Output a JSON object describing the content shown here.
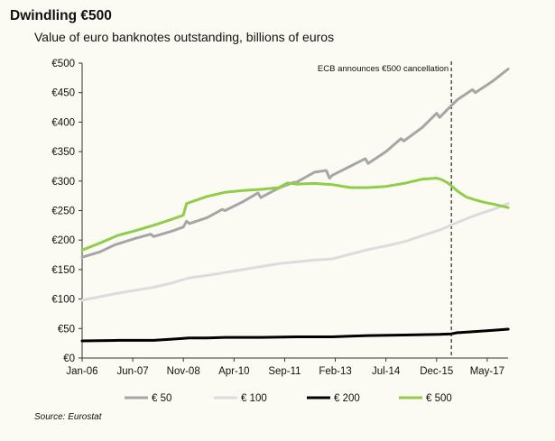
{
  "title": "Dwindling €500",
  "subtitle": "Value of euro banknotes outstanding, billions of euros",
  "source": "Source: Eurostat",
  "chart_data": {
    "type": "line",
    "title": "Dwindling €500",
    "subtitle": "Value of euro banknotes outstanding, billions of euros",
    "xlabel": "",
    "ylabel": "",
    "x_range": [
      2006.0,
      2017.917
    ],
    "ylim": [
      0,
      500
    ],
    "y_ticks": [
      0,
      50,
      100,
      150,
      200,
      250,
      300,
      350,
      400,
      450,
      500
    ],
    "y_tick_labels": [
      "€0",
      "€50",
      "€100",
      "€150",
      "€200",
      "€250",
      "€300",
      "€350",
      "€400",
      "€450",
      "€500"
    ],
    "x_ticks": [
      2006.0,
      2007.417,
      2008.833,
      2010.25,
      2011.667,
      2013.083,
      2014.5,
      2015.917,
      2017.333
    ],
    "x_tick_labels": [
      "Jan-06",
      "Jun-07",
      "Nov-08",
      "Apr-10",
      "Sep-11",
      "Feb-13",
      "Jul-14",
      "Dec-15",
      "May-17"
    ],
    "grid": false,
    "legend_position": "bottom",
    "annotations": [
      {
        "text": "ECB announces €500 cancellation",
        "x": 2016.33,
        "style": "dashed-vertical-line"
      }
    ],
    "series": [
      {
        "name": "€ 50",
        "color": "#a6a6a6",
        "x": [
          2006.0,
          2006.5,
          2006.92,
          2007.5,
          2007.92,
          2008.0,
          2008.5,
          2008.83,
          2008.92,
          2009.0,
          2009.5,
          2009.92,
          2010.0,
          2010.5,
          2010.92,
          2011.0,
          2011.5,
          2011.92,
          2012.0,
          2012.5,
          2012.83,
          2012.92,
          2013.0,
          2013.5,
          2013.92,
          2014.0,
          2014.5,
          2014.92,
          2015.0,
          2015.5,
          2015.92,
          2016.0,
          2016.33,
          2016.5,
          2016.92,
          2017.0,
          2017.5,
          2017.92
        ],
        "values": [
          171,
          180,
          192,
          203,
          210,
          206,
          215,
          222,
          232,
          228,
          238,
          252,
          250,
          265,
          280,
          272,
          288,
          298,
          298,
          315,
          318,
          305,
          310,
          325,
          338,
          330,
          350,
          372,
          368,
          390,
          415,
          408,
          428,
          438,
          455,
          450,
          470,
          490
        ]
      },
      {
        "name": "€ 100",
        "color": "#dcdcdc",
        "x": [
          2006.0,
          2006.5,
          2007.0,
          2007.5,
          2008.0,
          2008.5,
          2009.0,
          2009.5,
          2010.0,
          2010.5,
          2011.0,
          2011.5,
          2012.0,
          2012.5,
          2013.0,
          2013.5,
          2014.0,
          2014.5,
          2015.0,
          2015.5,
          2016.0,
          2016.5,
          2017.0,
          2017.5,
          2017.92
        ],
        "values": [
          98,
          104,
          110,
          115,
          120,
          127,
          136,
          140,
          145,
          150,
          155,
          160,
          163,
          166,
          168,
          176,
          184,
          190,
          197,
          207,
          217,
          230,
          242,
          252,
          262
        ]
      },
      {
        "name": "€ 200",
        "color": "#000000",
        "x": [
          2006.0,
          2007.0,
          2008.0,
          2008.5,
          2009.0,
          2009.5,
          2010.0,
          2011.0,
          2012.0,
          2013.0,
          2013.5,
          2014.0,
          2015.0,
          2016.0,
          2016.33,
          2016.5,
          2017.0,
          2017.5,
          2017.92
        ],
        "values": [
          29,
          30,
          30,
          32,
          34,
          34,
          35,
          35,
          36,
          36,
          37,
          38,
          39,
          40,
          41,
          43,
          45,
          47,
          49
        ]
      },
      {
        "name": "€ 500",
        "color": "#8fce4a",
        "x": [
          2006.0,
          2006.5,
          2007.0,
          2007.5,
          2008.0,
          2008.5,
          2008.83,
          2008.92,
          2009.5,
          2010.0,
          2010.5,
          2011.0,
          2011.5,
          2011.75,
          2012.0,
          2012.5,
          2013.0,
          2013.5,
          2014.0,
          2014.5,
          2015.0,
          2015.5,
          2015.92,
          2016.08,
          2016.25,
          2016.5,
          2016.75,
          2017.0,
          2017.25,
          2017.5,
          2017.92
        ],
        "values": [
          183,
          195,
          208,
          216,
          225,
          235,
          242,
          262,
          274,
          281,
          284,
          286,
          289,
          297,
          295,
          296,
          294,
          289,
          289,
          291,
          296,
          303,
          305,
          302,
          296,
          283,
          273,
          268,
          264,
          261,
          255
        ]
      }
    ]
  }
}
